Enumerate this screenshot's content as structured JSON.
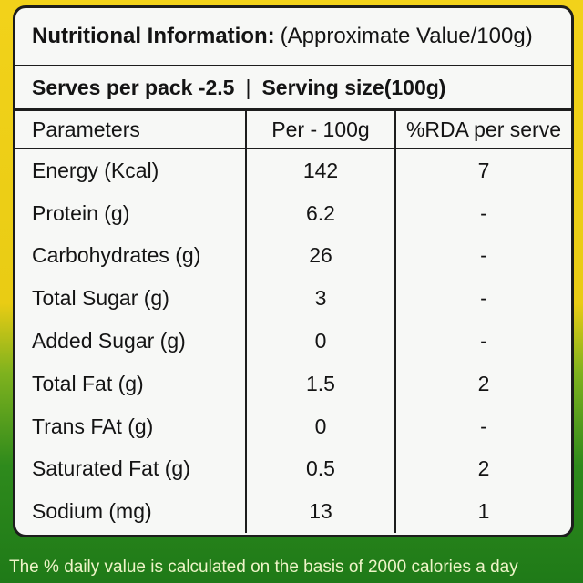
{
  "label": {
    "title_bold": "Nutritional Information:",
    "title_rest": "(Approximate Value/100g)",
    "serves": "Serves per pack -2.5",
    "separator": "|",
    "serving_size": "Serving size(100g)"
  },
  "table": {
    "headers": [
      "Parameters",
      "Per - 100g",
      "%RDA per serve"
    ],
    "rows": [
      {
        "name": "Energy (Kcal)",
        "per100g": "142",
        "rda": "7"
      },
      {
        "name": "Protein (g)",
        "per100g": "6.2",
        "rda": "-"
      },
      {
        "name": "Carbohydrates (g)",
        "per100g": "26",
        "rda": "-"
      },
      {
        "name": "Total Sugar (g)",
        "per100g": "3",
        "rda": "-"
      },
      {
        "name": "Added Sugar (g)",
        "per100g": "0",
        "rda": "-"
      },
      {
        "name": "Total Fat (g)",
        "per100g": "1.5",
        "rda": "2"
      },
      {
        "name": "Trans FAt (g)",
        "per100g": "0",
        "rda": "-"
      },
      {
        "name": "Saturated Fat (g)",
        "per100g": "0.5",
        "rda": "2"
      },
      {
        "name": "Sodium (mg)",
        "per100g": "13",
        "rda": "1"
      }
    ]
  },
  "footnote": "The % daily value is calculated on the basis of 2000 calories a day"
}
